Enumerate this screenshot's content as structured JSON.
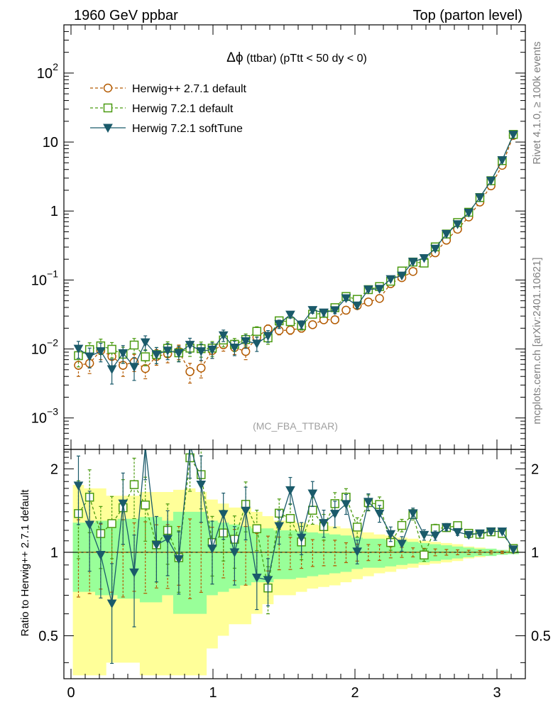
{
  "header": {
    "left": "1960 GeV ppbar",
    "right": "Top (parton level)"
  },
  "side_labels": {
    "rivet": "Rivet 4.1.0, ≥ 100k events",
    "mcplots": "mcplots.cern.ch [arXiv:2401.10621]"
  },
  "chart_data": {
    "type": "line",
    "title": "Δϕ (ttbar) (pTtt < 50 dy < 0)",
    "title_symbol": "Δϕ",
    "title_rest": " (ttbar) (pTtt < 50 dy < 0)",
    "watermark": "(MC_FBA_TTBAR)",
    "xlabel": "",
    "ylabel": "",
    "ratio_ylabel": "Ratio to Herwig++ 2.7.1 default",
    "xlim": [
      -0.05,
      3.2
    ],
    "ylim": [
      0.00035,
      500
    ],
    "yscale": "log",
    "ratio_ylim": [
      0.35,
      2.35
    ],
    "yticks": [
      {
        "value": 0.001,
        "base": "10",
        "exp": "−3"
      },
      {
        "value": 0.01,
        "base": "10",
        "exp": "−2"
      },
      {
        "value": 0.1,
        "base": "10",
        "exp": "−1"
      },
      {
        "value": 1,
        "base": "1",
        "exp": ""
      },
      {
        "value": 10,
        "base": "10",
        "exp": ""
      },
      {
        "value": 100,
        "base": "10",
        "exp": "2"
      }
    ],
    "xticks": [
      {
        "value": 0,
        "label": "0"
      },
      {
        "value": 1,
        "label": "1"
      },
      {
        "value": 2,
        "label": "2"
      },
      {
        "value": 3,
        "label": "3"
      }
    ],
    "ratio_yticks": [
      {
        "value": 0.5,
        "label": "0.5"
      },
      {
        "value": 1,
        "label": "1"
      },
      {
        "value": 2,
        "label": "2"
      }
    ],
    "x": [
      0.0524,
      0.1309,
      0.2094,
      0.288,
      0.3665,
      0.4451,
      0.5236,
      0.6021,
      0.6807,
      0.7592,
      0.8378,
      0.9163,
      0.9948,
      1.0734,
      1.1519,
      1.2305,
      1.309,
      1.3875,
      1.4661,
      1.5446,
      1.6232,
      1.7017,
      1.7802,
      1.8588,
      1.9373,
      2.0159,
      2.0944,
      2.1729,
      2.2515,
      2.33,
      2.4086,
      2.4871,
      2.5656,
      2.6442,
      2.7227,
      2.8013,
      2.8798,
      2.9583,
      3.0369,
      3.1154
    ],
    "series": [
      {
        "name": "Herwig++ 2.7.1 default",
        "color": "#b35a00",
        "marker": "open-circle",
        "dashed": true,
        "values": [
          0.0058,
          0.0062,
          0.0095,
          0.0078,
          0.0058,
          0.0065,
          0.0052,
          0.0078,
          0.0085,
          0.0092,
          0.0047,
          0.0053,
          0.0095,
          0.0115,
          0.0105,
          0.0092,
          0.0148,
          0.0195,
          0.0185,
          0.0188,
          0.02,
          0.0225,
          0.0265,
          0.0265,
          0.0365,
          0.0425,
          0.048,
          0.054,
          0.0885,
          0.108,
          0.133,
          0.18,
          0.248,
          0.378,
          0.545,
          0.82,
          1.35,
          2.32,
          4.6,
          12.5
        ],
        "errors": [
          0.0018,
          0.0018,
          0.0025,
          0.0022,
          0.0018,
          0.0018,
          0.0015,
          0.002,
          0.0022,
          0.0022,
          0.0015,
          0.0015,
          0.0022,
          0.0022,
          0.0022,
          0.0022,
          0.0025,
          0.0028,
          0.0025,
          0.0025,
          0.0025,
          0.0025,
          0.0028,
          0.0028,
          0.003,
          0.003,
          0.0032,
          0.0035,
          0.004,
          0.0045,
          0.005,
          0.006,
          0.007,
          0.009,
          0.011,
          0.014,
          0.02,
          0.03,
          0.045,
          0.08
        ]
      },
      {
        "name": "Herwig 7.2.1 default",
        "color": "#4a9a10",
        "marker": "open-square",
        "dashed": true,
        "values": [
          0.008,
          0.0098,
          0.0111,
          0.0099,
          0.0084,
          0.0114,
          0.0077,
          0.0083,
          0.0102,
          0.0088,
          0.0103,
          0.0101,
          0.0103,
          0.0135,
          0.0117,
          0.0137,
          0.018,
          0.0145,
          0.0256,
          0.0249,
          0.0218,
          0.0319,
          0.0328,
          0.0397,
          0.0577,
          0.0524,
          0.0725,
          0.0803,
          0.096,
          0.135,
          0.182,
          0.176,
          0.302,
          0.464,
          0.68,
          0.96,
          1.568,
          2.75,
          5.38,
          12.9
        ],
        "errors": [
          0.0025,
          0.0025,
          0.0028,
          0.0025,
          0.0022,
          0.0028,
          0.002,
          0.0022,
          0.0025,
          0.0022,
          0.0025,
          0.0025,
          0.0025,
          0.0028,
          0.0025,
          0.0028,
          0.003,
          0.0028,
          0.0032,
          0.0032,
          0.003,
          0.0035,
          0.0035,
          0.0038,
          0.0042,
          0.0042,
          0.0048,
          0.0052,
          0.006,
          0.007,
          0.008,
          0.009,
          0.011,
          0.014,
          0.018,
          0.023,
          0.032,
          0.045,
          0.07,
          0.11
        ]
      },
      {
        "name": "Herwig 7.2.1 softTune",
        "color": "#1a5a6a",
        "marker": "filled-triangle-down",
        "dashed": false,
        "values": [
          0.0101,
          0.0078,
          0.0093,
          0.0051,
          0.0087,
          0.0055,
          0.0125,
          0.0083,
          0.0095,
          0.0087,
          0.0115,
          0.0093,
          0.0098,
          0.0158,
          0.0105,
          0.013,
          0.012,
          0.0155,
          0.023,
          0.0315,
          0.0226,
          0.0367,
          0.0338,
          0.0365,
          0.0545,
          0.0428,
          0.073,
          0.0745,
          0.103,
          0.116,
          0.184,
          0.208,
          0.285,
          0.466,
          0.645,
          0.948,
          1.58,
          2.76,
          5.47,
          12.8
        ],
        "errors": [
          0.0028,
          0.0025,
          0.0028,
          0.002,
          0.0025,
          0.002,
          0.003,
          0.0022,
          0.0025,
          0.0022,
          0.0028,
          0.0025,
          0.0025,
          0.003,
          0.0025,
          0.0028,
          0.0028,
          0.003,
          0.0032,
          0.0035,
          0.003,
          0.0038,
          0.0038,
          0.004,
          0.0045,
          0.0042,
          0.005,
          0.0052,
          0.0062,
          0.007,
          0.008,
          0.009,
          0.011,
          0.014,
          0.018,
          0.023,
          0.032,
          0.045,
          0.07,
          0.11
        ]
      }
    ],
    "reference_bands": {
      "green_halfwidth": [
        0.28,
        0.28,
        0.3,
        0.3,
        0.32,
        0.32,
        0.34,
        0.34,
        0.3,
        0.4,
        0.4,
        0.4,
        0.3,
        0.28,
        0.26,
        0.24,
        0.22,
        0.22,
        0.2,
        0.2,
        0.19,
        0.18,
        0.17,
        0.16,
        0.15,
        0.13,
        0.12,
        0.12,
        0.11,
        0.1,
        0.09,
        0.08,
        0.07,
        0.06,
        0.05,
        0.04,
        0.03,
        0.03,
        0.02,
        0.015
      ],
      "yellow_halfwidth": [
        0.75,
        0.7,
        0.7,
        0.6,
        0.6,
        0.6,
        0.65,
        0.65,
        0.65,
        0.68,
        0.7,
        0.65,
        0.55,
        0.5,
        0.45,
        0.45,
        0.4,
        0.35,
        0.3,
        0.3,
        0.28,
        0.26,
        0.25,
        0.24,
        0.22,
        0.2,
        0.18,
        0.16,
        0.15,
        0.13,
        0.12,
        0.1,
        0.09,
        0.08,
        0.07,
        0.05,
        0.04,
        0.03,
        0.02,
        0.015
      ]
    }
  }
}
